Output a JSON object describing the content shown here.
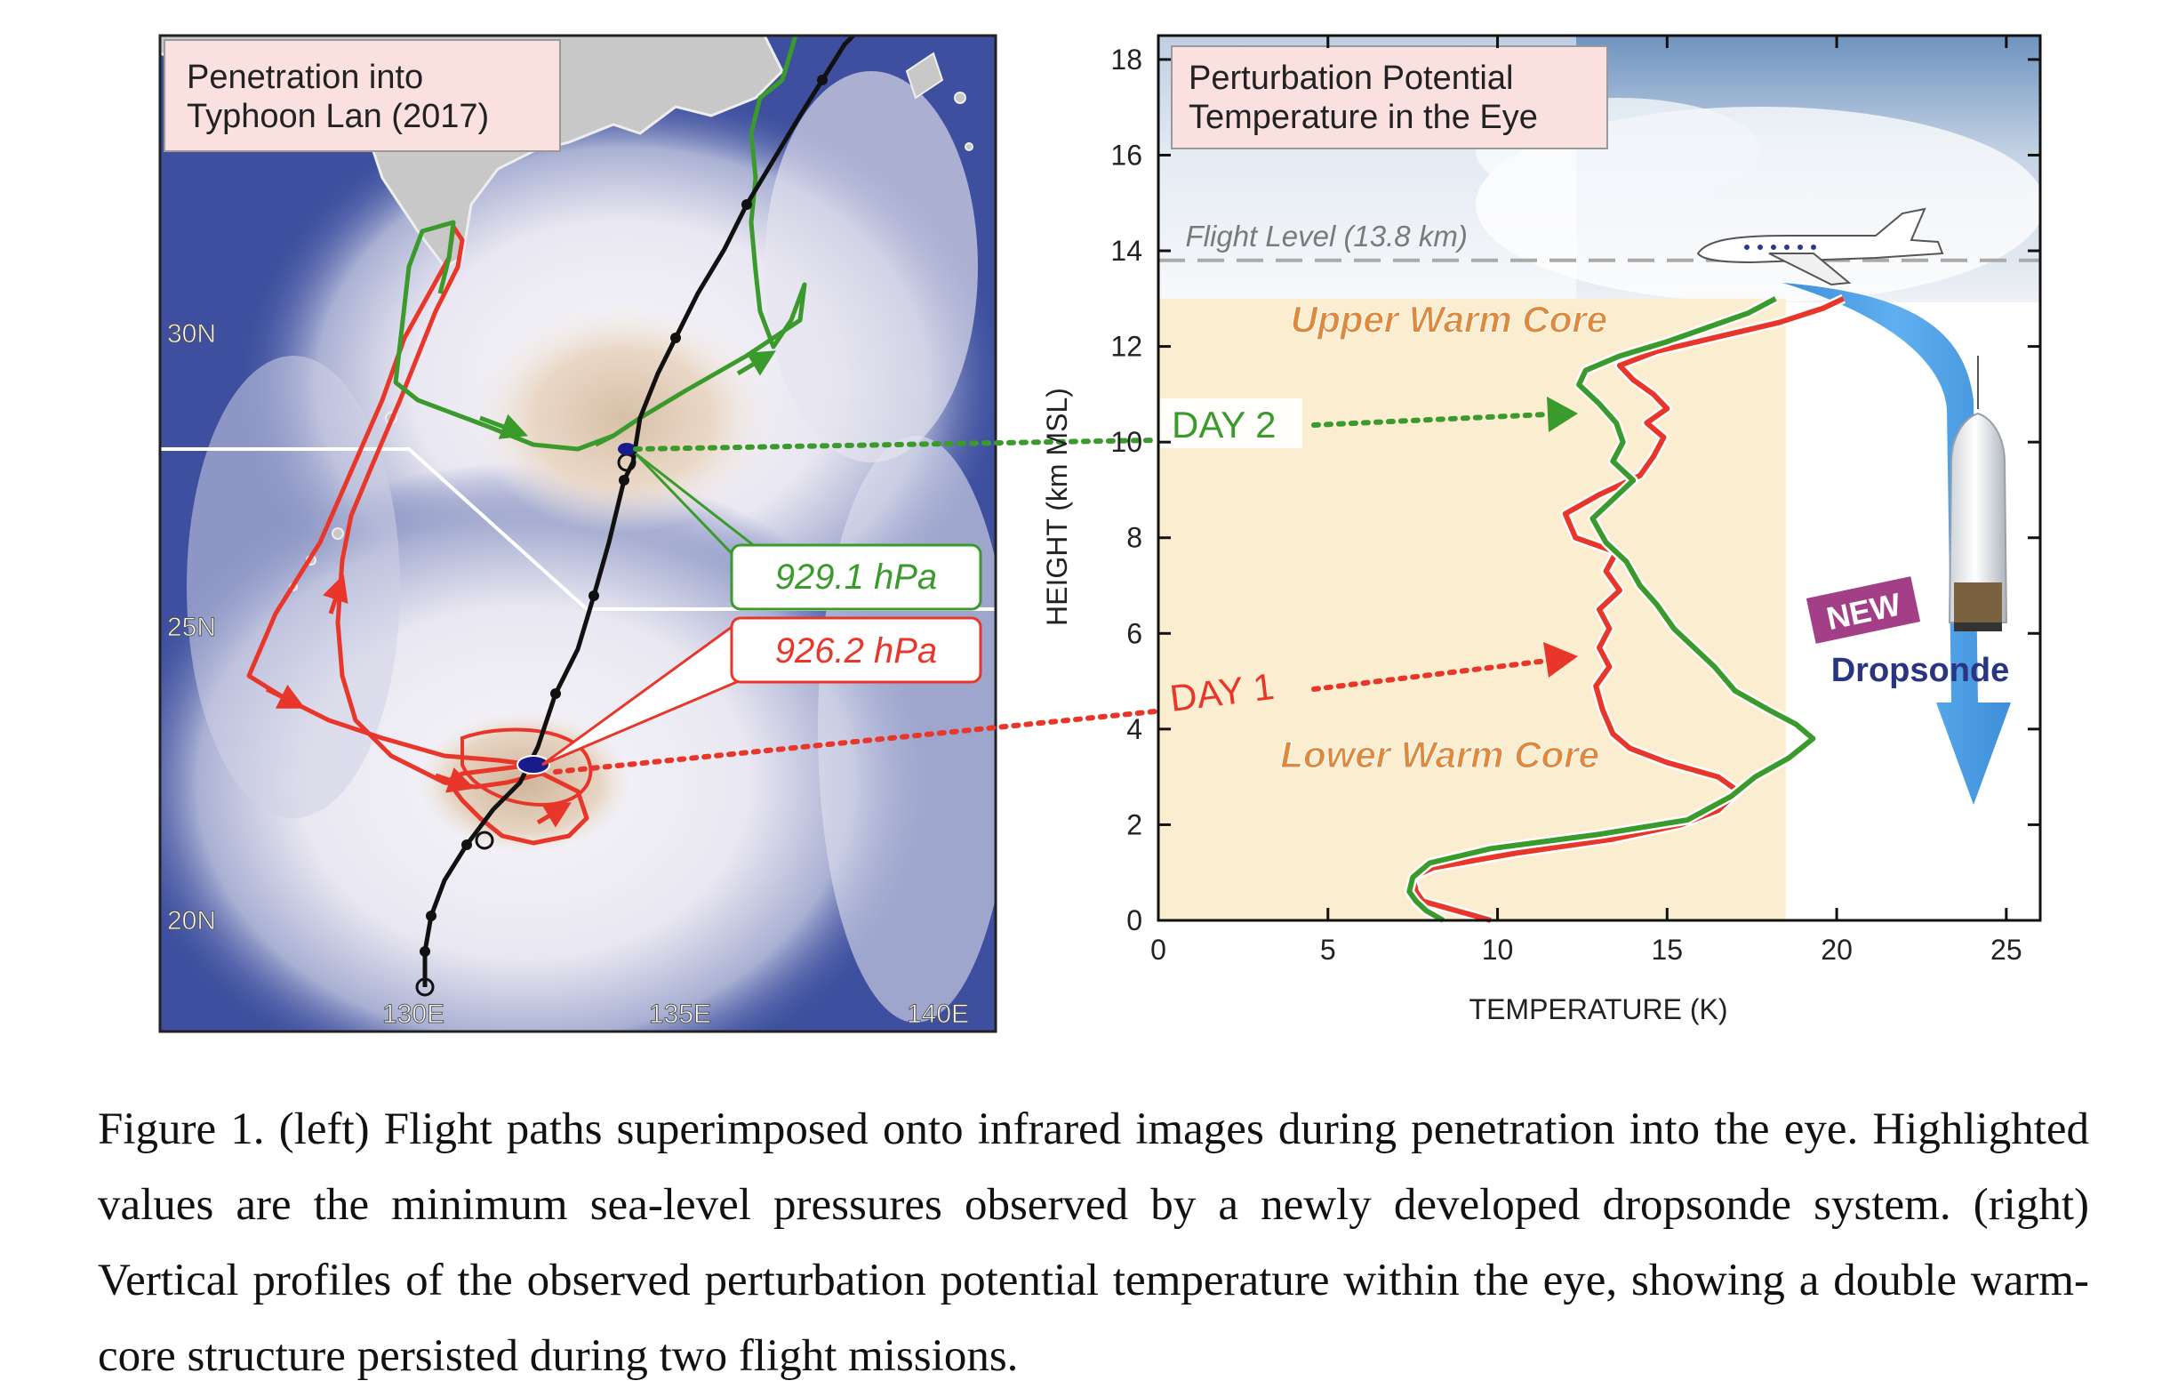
{
  "map_panel": {
    "title_line1": "Penetration into",
    "title_line2": "Typhoon Lan (2017)",
    "lat_labels": [
      "30N",
      "25N",
      "20N"
    ],
    "lon_labels": [
      "130E",
      "135E",
      "140E"
    ],
    "pressure_day2": "929.1 hPa",
    "pressure_day1": "926.2 hPa",
    "colors": {
      "day2": "#3a9a2c",
      "day1": "#e8362a",
      "track": "#111111",
      "box_fill": "#fbe0e0",
      "sea": "#3d4f9e",
      "cloud": "#f4f2f7",
      "land": "#c8c8c8"
    }
  },
  "profile_panel": {
    "title_line1": "Perturbation Potential",
    "title_line2": "Temperature in the Eye",
    "flight_level_label": "Flight Level (13.8 km)",
    "upper_core_label": "Upper Warm Core",
    "lower_core_label": "Lower Warm Core",
    "day2_label": "DAY 2",
    "day1_label": "DAY 1",
    "new_badge": "NEW",
    "dropsonde_label": "Dropsonde",
    "icons": [
      "jet-aircraft-icon",
      "dropsonde-icon",
      "down-arrow-icon"
    ]
  },
  "chart_data": {
    "type": "line",
    "title": "Perturbation Potential Temperature in the Eye",
    "xlabel": "TEMPERATURE (K)",
    "ylabel": "HEIGHT (km MSL)",
    "xlim": [
      0,
      26
    ],
    "ylim": [
      0,
      18.5
    ],
    "xticks": [
      "0",
      "5",
      "10",
      "15",
      "20",
      "25"
    ],
    "yticks": [
      "0",
      "2",
      "4",
      "6",
      "8",
      "10",
      "12",
      "14",
      "16",
      "18"
    ],
    "flight_level_km": 13.8,
    "grid": false,
    "series": [
      {
        "name": "DAY 2",
        "color": "#3a9a2c",
        "points": [
          [
            8.4,
            0
          ],
          [
            7.9,
            0.2
          ],
          [
            7.6,
            0.4
          ],
          [
            7.4,
            0.6
          ],
          [
            7.5,
            0.9
          ],
          [
            8.0,
            1.2
          ],
          [
            9.8,
            1.5
          ],
          [
            13.0,
            1.8
          ],
          [
            15.6,
            2.1
          ],
          [
            16.9,
            2.6
          ],
          [
            17.6,
            3.0
          ],
          [
            18.6,
            3.4
          ],
          [
            19.3,
            3.8
          ],
          [
            18.8,
            4.1
          ],
          [
            18.0,
            4.4
          ],
          [
            17.0,
            4.8
          ],
          [
            16.4,
            5.3
          ],
          [
            15.8,
            5.7
          ],
          [
            15.2,
            6.1
          ],
          [
            14.7,
            6.6
          ],
          [
            14.2,
            7.0
          ],
          [
            13.8,
            7.5
          ],
          [
            13.2,
            7.9
          ],
          [
            12.8,
            8.4
          ],
          [
            13.4,
            8.8
          ],
          [
            14.0,
            9.2
          ],
          [
            13.4,
            9.6
          ],
          [
            13.7,
            10.0
          ],
          [
            13.5,
            10.4
          ],
          [
            13.0,
            10.8
          ],
          [
            12.4,
            11.2
          ],
          [
            12.6,
            11.5
          ],
          [
            13.6,
            11.8
          ],
          [
            15.0,
            12.1
          ],
          [
            16.2,
            12.4
          ],
          [
            17.4,
            12.7
          ],
          [
            18.2,
            13.0
          ]
        ]
      },
      {
        "name": "DAY 1",
        "color": "#e8362a",
        "points": [
          [
            9.8,
            0
          ],
          [
            8.8,
            0.2
          ],
          [
            7.8,
            0.4
          ],
          [
            7.6,
            0.6
          ],
          [
            7.5,
            0.9
          ],
          [
            8.1,
            1.1
          ],
          [
            10.5,
            1.4
          ],
          [
            13.4,
            1.7
          ],
          [
            15.4,
            2.0
          ],
          [
            16.5,
            2.3
          ],
          [
            17.1,
            2.7
          ],
          [
            16.5,
            3.0
          ],
          [
            15.0,
            3.3
          ],
          [
            13.9,
            3.6
          ],
          [
            13.4,
            3.9
          ],
          [
            13.1,
            4.4
          ],
          [
            12.9,
            4.9
          ],
          [
            13.3,
            5.3
          ],
          [
            13.0,
            5.7
          ],
          [
            13.3,
            6.1
          ],
          [
            13.0,
            6.5
          ],
          [
            13.6,
            6.9
          ],
          [
            13.2,
            7.3
          ],
          [
            13.5,
            7.7
          ],
          [
            12.3,
            8.0
          ],
          [
            12.0,
            8.5
          ],
          [
            13.0,
            8.9
          ],
          [
            14.2,
            9.3
          ],
          [
            14.6,
            9.7
          ],
          [
            14.9,
            10.1
          ],
          [
            14.4,
            10.4
          ],
          [
            15.0,
            10.7
          ],
          [
            14.6,
            11.0
          ],
          [
            14.0,
            11.3
          ],
          [
            13.6,
            11.6
          ],
          [
            14.7,
            11.9
          ],
          [
            16.5,
            12.2
          ],
          [
            18.3,
            12.5
          ],
          [
            19.6,
            12.8
          ],
          [
            20.2,
            13.0
          ]
        ]
      }
    ]
  },
  "caption": {
    "text": "Figure 1. (left) Flight paths superimposed onto infrared images during penetration into the eye. Highlighted values are the minimum sea-level pressures observed by a newly developed dropsonde system. (right) Vertical profiles of the observed perturbation potential temperature within the eye, showing a double warm-core structure persisted during two flight missions."
  }
}
